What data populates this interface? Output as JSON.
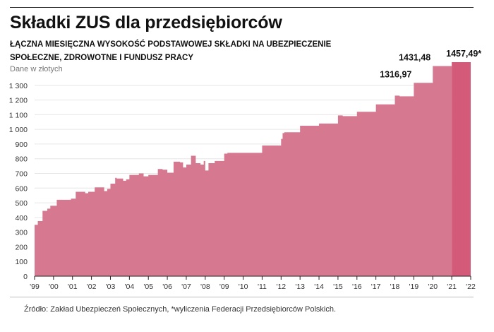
{
  "header": {
    "title": "Składki ZUS dla przedsiębiorców",
    "subtitle_line1": "ŁĄCZNA MIESIĘCZNA WYSOKOŚĆ PODSTAWOWEJ SKŁADKI NA UBEZPIECZENIE",
    "subtitle_line2": "SPOŁECZNE, ZDROWOTNE I FUNDUSZ PRACY",
    "unit": "Dane w złotych"
  },
  "footer": {
    "source": "Źródło: Zakład Ubezpieczeń Społecznych, *wyliczenia Federacji Przedsiębiorców Polskich."
  },
  "colors": {
    "bars": "#d6788f",
    "highlight": "#d45a7a",
    "grid": "#e6e6e6",
    "axis": "#222222"
  },
  "chart_data": {
    "type": "area",
    "step": true,
    "x_range": [
      1999.0,
      2022.0
    ],
    "ylim": [
      0,
      1400
    ],
    "yticks": [
      0,
      100,
      200,
      300,
      400,
      500,
      600,
      700,
      800,
      900,
      1000,
      1100,
      1200,
      1300
    ],
    "ytick_labels": [
      "0",
      "100",
      "200",
      "300",
      "400",
      "500",
      "600",
      "700",
      "800",
      "900",
      "1 000",
      "1 100",
      "1 200",
      "1 300"
    ],
    "xticks": [
      1999,
      2000,
      2001,
      2002,
      2003,
      2004,
      2005,
      2006,
      2007,
      2008,
      2009,
      2010,
      2011,
      2012,
      2013,
      2014,
      2015,
      2016,
      2017,
      2018,
      2019,
      2020,
      2021,
      2022
    ],
    "xtick_labels": [
      "'99",
      "'00",
      "'01",
      "'02",
      "'03",
      "'04",
      "'05",
      "'06",
      "'07",
      "'08",
      "'09",
      "'10",
      "'11",
      "'12",
      "'13",
      "'14",
      "'15",
      "'16",
      "'17",
      "'18",
      "'19",
      "'20",
      "'21",
      "'22"
    ],
    "grid": true,
    "series": [
      {
        "x": [
          1999.0,
          1999.17,
          1999.42,
          1999.67,
          1999.83,
          2000.17,
          2000.92,
          2001.17,
          2001.67,
          2001.83,
          2002.17,
          2002.67,
          2002.83,
          2003.0,
          2003.25,
          2003.33,
          2003.67,
          2003.83,
          2004.0,
          2004.5,
          2004.75,
          2005.0,
          2005.5,
          2005.75,
          2006.0,
          2006.33,
          2006.67,
          2006.83,
          2007.0,
          2007.25,
          2007.5,
          2007.75,
          2007.92,
          2008.0,
          2008.17,
          2008.5,
          2009.0,
          2009.17,
          2011.0,
          2012.0,
          2012.08,
          2012.17,
          2013.0,
          2014.0,
          2015.0,
          2015.25,
          2016.0,
          2017.0,
          2018.0,
          2018.25,
          2019.0,
          2020.0
        ],
        "y": [
          350,
          375,
          445,
          460,
          480,
          520,
          528,
          575,
          565,
          575,
          605,
          580,
          595,
          630,
          670,
          665,
          650,
          660,
          690,
          700,
          680,
          690,
          730,
          725,
          705,
          780,
          775,
          740,
          760,
          820,
          770,
          760,
          785,
          720,
          770,
          785,
          835,
          840,
          890,
          935,
          975,
          980,
          1025,
          1040,
          1095,
          1090,
          1120,
          1170,
          1230,
          1225,
          1316.97,
          1431.48
        ],
        "x_end": 2021.0
      },
      {
        "name": "",
        "highlight": true,
        "x": [
          2021.0
        ],
        "y": [
          1457.49
        ],
        "x_end": 2022.0
      }
    ],
    "annotations": [
      {
        "x": 2019.0,
        "y": 1316.97,
        "text": "1316,97"
      },
      {
        "x": 2020.0,
        "y": 1431.48,
        "text": "1431,48"
      },
      {
        "x": 2021.0,
        "y": 1457.49,
        "text": "1457,49*"
      }
    ]
  }
}
